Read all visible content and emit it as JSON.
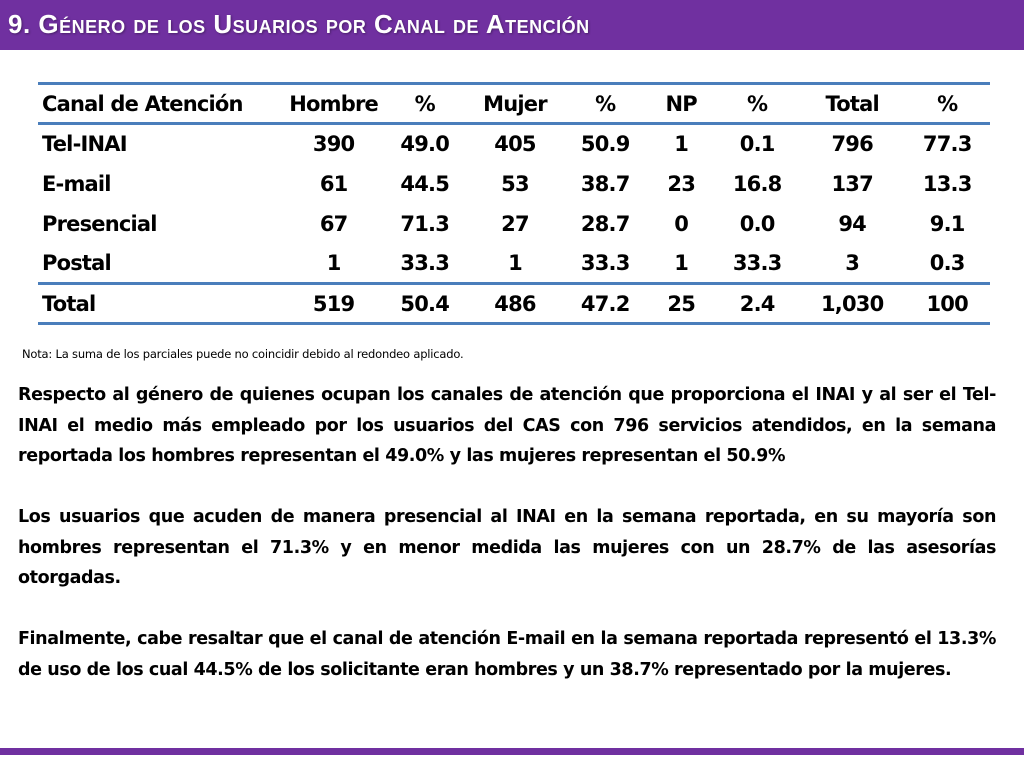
{
  "title": "9. Género de los Usuarios por Canal de Atención",
  "table": {
    "headers": [
      "Canal de Atención",
      "Hombre",
      "%",
      "Mujer",
      "%",
      "NP",
      "%",
      "Total",
      "%"
    ],
    "rows": [
      [
        "Tel-INAI",
        "390",
        "49.0",
        "405",
        "50.9",
        "1",
        "0.1",
        "796",
        "77.3"
      ],
      [
        "E-mail",
        "61",
        "44.5",
        "53",
        "38.7",
        "23",
        "16.8",
        "137",
        "13.3"
      ],
      [
        "Presencial",
        "67",
        "71.3",
        "27",
        "28.7",
        "0",
        "0.0",
        "94",
        "9.1"
      ],
      [
        "Postal",
        "1",
        "33.3",
        "1",
        "33.3",
        "1",
        "33.3",
        "3",
        "0.3"
      ]
    ],
    "total_row": [
      "Total",
      "519",
      "50.4",
      "486",
      "47.2",
      "25",
      "2.4",
      "1,030",
      "100"
    ]
  },
  "note": "Nota: La suma de los parciales puede no coincidir debido al redondeo aplicado.",
  "paragraphs": [
    "Respecto al género de quienes ocupan los canales de atención que proporciona el INAI y al ser el Tel-INAI el medio más empleado por los usuarios del CAS con 796 servicios atendidos, en la semana reportada los hombres representan el 49.0% y las mujeres representan el 50.9%",
    "Los usuarios que acuden de manera presencial al INAI en la semana reportada, en su mayoría son hombres representan el 71.3% y en menor medida las mujeres con un 28.7% de las asesorías otorgadas.",
    "Finalmente, cabe resaltar que el canal de atención E-mail en la semana reportada representó el 13.3% de uso de los cual 44.5% de los solicitante eran hombres y un 38.7% representado por la mujeres."
  ],
  "colors": {
    "accent": "#7030a0",
    "table_rule": "#4a7ebb"
  }
}
